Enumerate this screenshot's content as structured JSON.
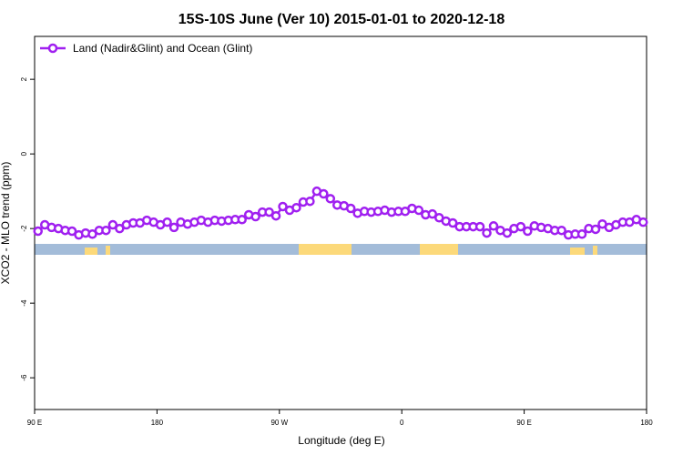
{
  "chart_data": {
    "type": "line",
    "title": "15S-10S June (Ver 10)   2015-01-01 to 2020-12-18",
    "x_label": "Longitude (deg E)",
    "y_label": "XCO2 - MLO trend (ppm)",
    "legend": "top-left",
    "x": [
      92.5,
      97.5,
      102.5,
      107.5,
      112.5,
      117.5,
      122.5,
      127.5,
      132.5,
      137.5,
      142.5,
      147.5,
      152.5,
      157.5,
      162.5,
      167.5,
      172.5,
      177.5,
      182.5,
      187.5,
      192.5,
      197.5,
      202.5,
      207.5,
      212.5,
      217.5,
      222.5,
      227.5,
      232.5,
      237.5,
      242.5,
      247.5,
      252.5,
      257.5,
      262.5,
      267.5,
      272.5,
      277.5,
      282.5,
      287.5,
      292.5,
      297.5,
      302.5,
      307.5,
      312.5,
      317.5,
      322.5,
      327.5,
      332.5,
      337.5,
      342.5,
      347.5,
      352.5,
      357.5,
      362.5,
      367.5,
      372.5,
      377.5,
      382.5,
      387.5,
      392.5,
      397.5,
      402.5,
      407.5,
      412.5,
      417.5,
      422.5,
      427.5,
      432.5,
      437.5,
      442.5,
      447.5,
      452.5,
      457.5,
      462.5,
      467.5,
      472.5,
      477.5,
      482.5,
      487.5,
      492.5,
      497.5,
      502.5,
      507.5,
      512.5,
      517.5,
      522.5,
      527.5,
      532.5,
      537.5
    ],
    "series": [
      {
        "name": "Land (Nadir&Glint) and Ocean (Glint)",
        "color": "#a020f0",
        "values": [
          -2.07,
          -1.9,
          -1.97,
          -2.0,
          -2.05,
          -2.07,
          -2.17,
          -2.12,
          -2.15,
          -2.05,
          -2.05,
          -1.9,
          -2.0,
          -1.9,
          -1.85,
          -1.85,
          -1.78,
          -1.83,
          -1.9,
          -1.83,
          -1.97,
          -1.83,
          -1.88,
          -1.83,
          -1.78,
          -1.83,
          -1.78,
          -1.8,
          -1.78,
          -1.76,
          -1.76,
          -1.63,
          -1.68,
          -1.56,
          -1.56,
          -1.66,
          -1.41,
          -1.51,
          -1.44,
          -1.29,
          -1.27,
          -1.0,
          -1.07,
          -1.2,
          -1.37,
          -1.39,
          -1.46,
          -1.59,
          -1.54,
          -1.56,
          -1.54,
          -1.51,
          -1.56,
          -1.54,
          -1.54,
          -1.46,
          -1.51,
          -1.63,
          -1.61,
          -1.71,
          -1.8,
          -1.85,
          -1.95,
          -1.95,
          -1.95,
          -1.95,
          -2.12,
          -1.93,
          -2.05,
          -2.12,
          -2.0,
          -1.95,
          -2.07,
          -1.93,
          -1.97,
          -2.0,
          -2.05,
          -2.05,
          -2.17,
          -2.15,
          -2.15,
          -2.0,
          -2.02,
          -1.88,
          -1.97,
          -1.9,
          -1.83,
          -1.83,
          -1.76,
          -1.83
        ]
      }
    ],
    "xlim": [
      90,
      540
    ],
    "xticks": [
      {
        "value": 90,
        "label": "90 E"
      },
      180,
      {
        "value": 270,
        "label": "90 W"
      },
      {
        "value": 360,
        "label": "0"
      },
      {
        "value": 450,
        "label": "90 E"
      },
      {
        "value": 540,
        "label": "180"
      }
    ],
    "ylim": [
      -6.85,
      3.15
    ],
    "yticks": [
      -6,
      -4,
      -2,
      0,
      2
    ]
  }
}
